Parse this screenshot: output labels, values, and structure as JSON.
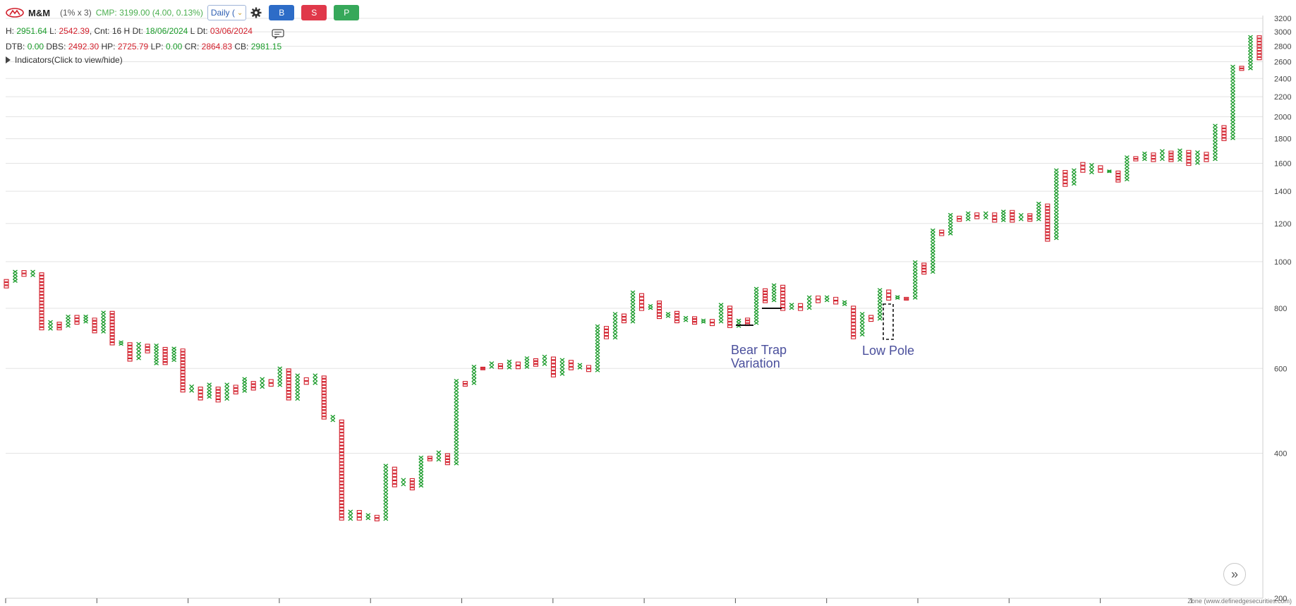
{
  "header": {
    "symbol": "M&M",
    "params": "(1% x 3)",
    "cmp": "CMP: 3199.00 (4.00, 0.13%)",
    "timeframe": "Daily (",
    "buttons": {
      "buy": "B",
      "sell": "S",
      "p": "P"
    }
  },
  "stats1": {
    "h_label": "H:",
    "h_value": "2951.64",
    "l_label": "L:",
    "l_value": "2542.39",
    "cnt_label": ", Cnt:",
    "cnt_value": "16 H",
    "dt_label": "Dt:",
    "dt_value": "18/06/2024",
    "ldt_label": "L Dt:",
    "ldt_value": "03/06/2024"
  },
  "stats2": {
    "dtb_label": "DTB:",
    "dtb_value": "0.00",
    "dbs_label": "DBS:",
    "dbs_value": "2492.30",
    "hp_label": "HP:",
    "hp_value": "2725.79",
    "lp_label": "LP:",
    "lp_value": "0.00",
    "cr_label": "CR:",
    "cr_value": "2864.83",
    "cb_label": "CB:",
    "cb_value": "2981.15"
  },
  "indicators_label": "Indicators(Click to view/hide)",
  "footer": "Zone (www.definedgesecurities.com)",
  "colors": {
    "up": "#1a9b2a",
    "down": "#d21f2b",
    "annotation": "#4a4f9c"
  },
  "icons": {
    "logo": "mahindra-logo",
    "settings": "gear-icon",
    "comment": "comment-icon",
    "scroll": "double-chevron-right-icon"
  },
  "chart_data": {
    "type": "point-and-figure",
    "box_size": "1%",
    "reversal": 3,
    "y_scale": "log",
    "ylim": [
      200,
      3200
    ],
    "y_ticks": [
      200,
      400,
      600,
      800,
      1000,
      1200,
      1400,
      1600,
      1800,
      2000,
      2200,
      2400,
      2600,
      2800,
      3000,
      3200
    ],
    "columns": [
      {
        "dir": "O",
        "hi": 920,
        "lo": 880
      },
      {
        "dir": "X",
        "hi": 960,
        "lo": 905
      },
      {
        "dir": "O",
        "hi": 960,
        "lo": 930
      },
      {
        "dir": "X",
        "hi": 960,
        "lo": 930
      },
      {
        "dir": "O",
        "hi": 950,
        "lo": 720
      },
      {
        "dir": "X",
        "hi": 755,
        "lo": 720
      },
      {
        "dir": "O",
        "hi": 750,
        "lo": 720
      },
      {
        "dir": "X",
        "hi": 775,
        "lo": 730
      },
      {
        "dir": "O",
        "hi": 775,
        "lo": 740
      },
      {
        "dir": "X",
        "hi": 775,
        "lo": 745
      },
      {
        "dir": "O",
        "hi": 765,
        "lo": 710
      },
      {
        "dir": "X",
        "hi": 790,
        "lo": 710
      },
      {
        "dir": "O",
        "hi": 790,
        "lo": 670
      },
      {
        "dir": "X",
        "hi": 685,
        "lo": 670
      },
      {
        "dir": "O",
        "hi": 680,
        "lo": 620
      },
      {
        "dir": "X",
        "hi": 680,
        "lo": 625
      },
      {
        "dir": "O",
        "hi": 675,
        "lo": 645
      },
      {
        "dir": "X",
        "hi": 675,
        "lo": 610
      },
      {
        "dir": "O",
        "hi": 665,
        "lo": 610
      },
      {
        "dir": "X",
        "hi": 665,
        "lo": 620
      },
      {
        "dir": "O",
        "hi": 660,
        "lo": 535
      },
      {
        "dir": "X",
        "hi": 555,
        "lo": 535
      },
      {
        "dir": "O",
        "hi": 550,
        "lo": 515
      },
      {
        "dir": "X",
        "hi": 560,
        "lo": 520
      },
      {
        "dir": "O",
        "hi": 550,
        "lo": 510
      },
      {
        "dir": "X",
        "hi": 560,
        "lo": 515
      },
      {
        "dir": "O",
        "hi": 555,
        "lo": 530
      },
      {
        "dir": "X",
        "hi": 575,
        "lo": 535
      },
      {
        "dir": "O",
        "hi": 565,
        "lo": 540
      },
      {
        "dir": "X",
        "hi": 575,
        "lo": 545
      },
      {
        "dir": "O",
        "hi": 570,
        "lo": 550
      },
      {
        "dir": "X",
        "hi": 605,
        "lo": 550
      },
      {
        "dir": "O",
        "hi": 600,
        "lo": 515
      },
      {
        "dir": "X",
        "hi": 585,
        "lo": 515
      },
      {
        "dir": "O",
        "hi": 575,
        "lo": 555
      },
      {
        "dir": "X",
        "hi": 585,
        "lo": 555
      },
      {
        "dir": "O",
        "hi": 580,
        "lo": 470
      },
      {
        "dir": "X",
        "hi": 480,
        "lo": 465
      },
      {
        "dir": "O",
        "hi": 470,
        "lo": 290
      },
      {
        "dir": "X",
        "hi": 305,
        "lo": 290
      },
      {
        "dir": "O",
        "hi": 305,
        "lo": 290
      },
      {
        "dir": "X",
        "hi": 300,
        "lo": 291
      },
      {
        "dir": "O",
        "hi": 298,
        "lo": 289
      },
      {
        "dir": "X",
        "hi": 380,
        "lo": 290
      },
      {
        "dir": "O",
        "hi": 375,
        "lo": 340
      },
      {
        "dir": "X",
        "hi": 355,
        "lo": 342
      },
      {
        "dir": "O",
        "hi": 355,
        "lo": 335
      },
      {
        "dir": "X",
        "hi": 395,
        "lo": 340
      },
      {
        "dir": "O",
        "hi": 395,
        "lo": 385
      },
      {
        "dir": "X",
        "hi": 405,
        "lo": 385
      },
      {
        "dir": "O",
        "hi": 400,
        "lo": 378
      },
      {
        "dir": "X",
        "hi": 570,
        "lo": 378
      },
      {
        "dir": "O",
        "hi": 565,
        "lo": 550
      },
      {
        "dir": "X",
        "hi": 610,
        "lo": 555
      },
      {
        "dir": "O",
        "hi": 605,
        "lo": 595
      },
      {
        "dir": "X",
        "hi": 620,
        "lo": 600
      },
      {
        "dir": "O",
        "hi": 615,
        "lo": 598
      },
      {
        "dir": "X",
        "hi": 625,
        "lo": 598
      },
      {
        "dir": "O",
        "hi": 620,
        "lo": 598
      },
      {
        "dir": "X",
        "hi": 635,
        "lo": 600
      },
      {
        "dir": "O",
        "hi": 630,
        "lo": 605
      },
      {
        "dir": "X",
        "hi": 640,
        "lo": 608
      },
      {
        "dir": "O",
        "hi": 635,
        "lo": 575
      },
      {
        "dir": "X",
        "hi": 630,
        "lo": 580
      },
      {
        "dir": "O",
        "hi": 625,
        "lo": 595
      },
      {
        "dir": "X",
        "hi": 615,
        "lo": 598
      },
      {
        "dir": "O",
        "hi": 610,
        "lo": 590
      },
      {
        "dir": "X",
        "hi": 740,
        "lo": 590
      },
      {
        "dir": "O",
        "hi": 735,
        "lo": 690
      },
      {
        "dir": "X",
        "hi": 785,
        "lo": 690
      },
      {
        "dir": "O",
        "hi": 780,
        "lo": 745
      },
      {
        "dir": "X",
        "hi": 870,
        "lo": 745
      },
      {
        "dir": "O",
        "hi": 860,
        "lo": 790
      },
      {
        "dir": "X",
        "hi": 815,
        "lo": 795
      },
      {
        "dir": "O",
        "hi": 830,
        "lo": 760
      },
      {
        "dir": "X",
        "hi": 785,
        "lo": 765
      },
      {
        "dir": "O",
        "hi": 790,
        "lo": 745
      },
      {
        "dir": "X",
        "hi": 770,
        "lo": 750
      },
      {
        "dir": "O",
        "hi": 770,
        "lo": 740
      },
      {
        "dir": "X",
        "hi": 760,
        "lo": 745
      },
      {
        "dir": "O",
        "hi": 760,
        "lo": 735
      },
      {
        "dir": "X",
        "hi": 820,
        "lo": 745
      },
      {
        "dir": "O",
        "hi": 810,
        "lo": 728
      },
      {
        "dir": "X",
        "hi": 760,
        "lo": 730
      },
      {
        "dir": "O",
        "hi": 765,
        "lo": 735
      },
      {
        "dir": "X",
        "hi": 885,
        "lo": 740
      },
      {
        "dir": "O",
        "hi": 880,
        "lo": 820
      },
      {
        "dir": "X",
        "hi": 900,
        "lo": 825
      },
      {
        "dir": "O",
        "hi": 895,
        "lo": 790
      },
      {
        "dir": "X",
        "hi": 820,
        "lo": 795
      },
      {
        "dir": "O",
        "hi": 820,
        "lo": 790
      },
      {
        "dir": "X",
        "hi": 850,
        "lo": 795
      },
      {
        "dir": "O",
        "hi": 850,
        "lo": 820
      },
      {
        "dir": "X",
        "hi": 850,
        "lo": 825
      },
      {
        "dir": "O",
        "hi": 845,
        "lo": 815
      },
      {
        "dir": "X",
        "hi": 830,
        "lo": 810
      },
      {
        "dir": "O",
        "hi": 810,
        "lo": 690
      },
      {
        "dir": "X",
        "hi": 785,
        "lo": 700
      },
      {
        "dir": "O",
        "hi": 775,
        "lo": 750
      },
      {
        "dir": "X",
        "hi": 880,
        "lo": 755
      },
      {
        "dir": "O",
        "hi": 875,
        "lo": 830
      },
      {
        "dir": "X",
        "hi": 850,
        "lo": 835
      },
      {
        "dir": "O",
        "hi": 845,
        "lo": 830
      },
      {
        "dir": "X",
        "hi": 1005,
        "lo": 835
      },
      {
        "dir": "O",
        "hi": 995,
        "lo": 940
      },
      {
        "dir": "X",
        "hi": 1170,
        "lo": 945
      },
      {
        "dir": "O",
        "hi": 1165,
        "lo": 1130
      },
      {
        "dir": "X",
        "hi": 1260,
        "lo": 1135
      },
      {
        "dir": "O",
        "hi": 1245,
        "lo": 1210
      },
      {
        "dir": "X",
        "hi": 1270,
        "lo": 1215
      },
      {
        "dir": "O",
        "hi": 1265,
        "lo": 1225
      },
      {
        "dir": "X",
        "hi": 1270,
        "lo": 1225
      },
      {
        "dir": "O",
        "hi": 1265,
        "lo": 1205
      },
      {
        "dir": "X",
        "hi": 1280,
        "lo": 1210
      },
      {
        "dir": "O",
        "hi": 1280,
        "lo": 1205
      },
      {
        "dir": "X",
        "hi": 1260,
        "lo": 1215
      },
      {
        "dir": "O",
        "hi": 1260,
        "lo": 1210
      },
      {
        "dir": "X",
        "hi": 1330,
        "lo": 1215
      },
      {
        "dir": "O",
        "hi": 1320,
        "lo": 1100
      },
      {
        "dir": "X",
        "hi": 1560,
        "lo": 1110
      },
      {
        "dir": "O",
        "hi": 1550,
        "lo": 1430
      },
      {
        "dir": "X",
        "hi": 1560,
        "lo": 1440
      },
      {
        "dir": "O",
        "hi": 1610,
        "lo": 1530
      },
      {
        "dir": "X",
        "hi": 1600,
        "lo": 1520
      },
      {
        "dir": "O",
        "hi": 1585,
        "lo": 1530
      },
      {
        "dir": "X",
        "hi": 1550,
        "lo": 1530
      },
      {
        "dir": "O",
        "hi": 1545,
        "lo": 1460
      },
      {
        "dir": "X",
        "hi": 1660,
        "lo": 1470
      },
      {
        "dir": "O",
        "hi": 1655,
        "lo": 1615
      },
      {
        "dir": "X",
        "hi": 1690,
        "lo": 1620
      },
      {
        "dir": "O",
        "hi": 1685,
        "lo": 1610
      },
      {
        "dir": "X",
        "hi": 1710,
        "lo": 1620
      },
      {
        "dir": "O",
        "hi": 1700,
        "lo": 1610
      },
      {
        "dir": "X",
        "hi": 1715,
        "lo": 1615
      },
      {
        "dir": "O",
        "hi": 1705,
        "lo": 1580
      },
      {
        "dir": "X",
        "hi": 1700,
        "lo": 1590
      },
      {
        "dir": "O",
        "hi": 1690,
        "lo": 1610
      },
      {
        "dir": "X",
        "hi": 1930,
        "lo": 1620
      },
      {
        "dir": "O",
        "hi": 1920,
        "lo": 1780
      },
      {
        "dir": "X",
        "hi": 2560,
        "lo": 1790
      },
      {
        "dir": "O",
        "hi": 2550,
        "lo": 2490
      },
      {
        "dir": "X",
        "hi": 2950,
        "lo": 2500
      },
      {
        "dir": "O",
        "hi": 2950,
        "lo": 2620
      }
    ],
    "annotations": [
      {
        "text_lines": [
          "Bear Trap",
          "Variation"
        ]
      },
      {
        "text_lines": [
          "Low Pole"
        ]
      }
    ]
  }
}
